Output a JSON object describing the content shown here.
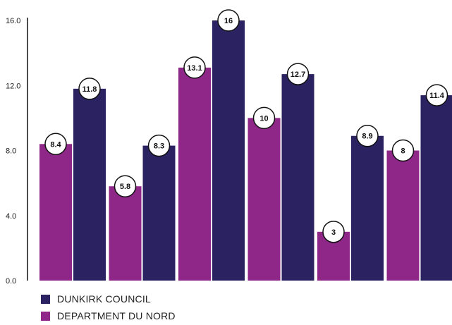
{
  "chart_data": {
    "type": "bar",
    "categories": [
      "",
      "",
      "",
      "",
      "",
      ""
    ],
    "series": [
      {
        "name": "DEPARTMENT DU NORD",
        "color": "#8e2787",
        "values": [
          8.4,
          5.8,
          13.1,
          10,
          3,
          8
        ]
      },
      {
        "name": "DUNKIRK COUNCIL",
        "color": "#2b2262",
        "values": [
          11.8,
          8.3,
          16,
          12.7,
          8.9,
          11.4
        ]
      }
    ],
    "data_labels": [
      [
        "8.4",
        "5.8",
        "13.1",
        "10",
        "3",
        "8"
      ],
      [
        "11.8",
        "8.3",
        "16",
        "12.7",
        "8.9",
        "11.4"
      ]
    ],
    "yticks": [
      "0.0",
      "4.0",
      "8.0",
      "12.0",
      "16.0"
    ],
    "ylim": [
      0,
      16
    ],
    "title": "",
    "xlabel": "",
    "ylabel": "",
    "grid": false,
    "legend_position": "bottom-left"
  },
  "legend": [
    {
      "label": "DUNKIRK COUNCIL",
      "color": "#2b2262"
    },
    {
      "label": "DEPARTMENT DU NORD",
      "color": "#8e2787"
    }
  ]
}
